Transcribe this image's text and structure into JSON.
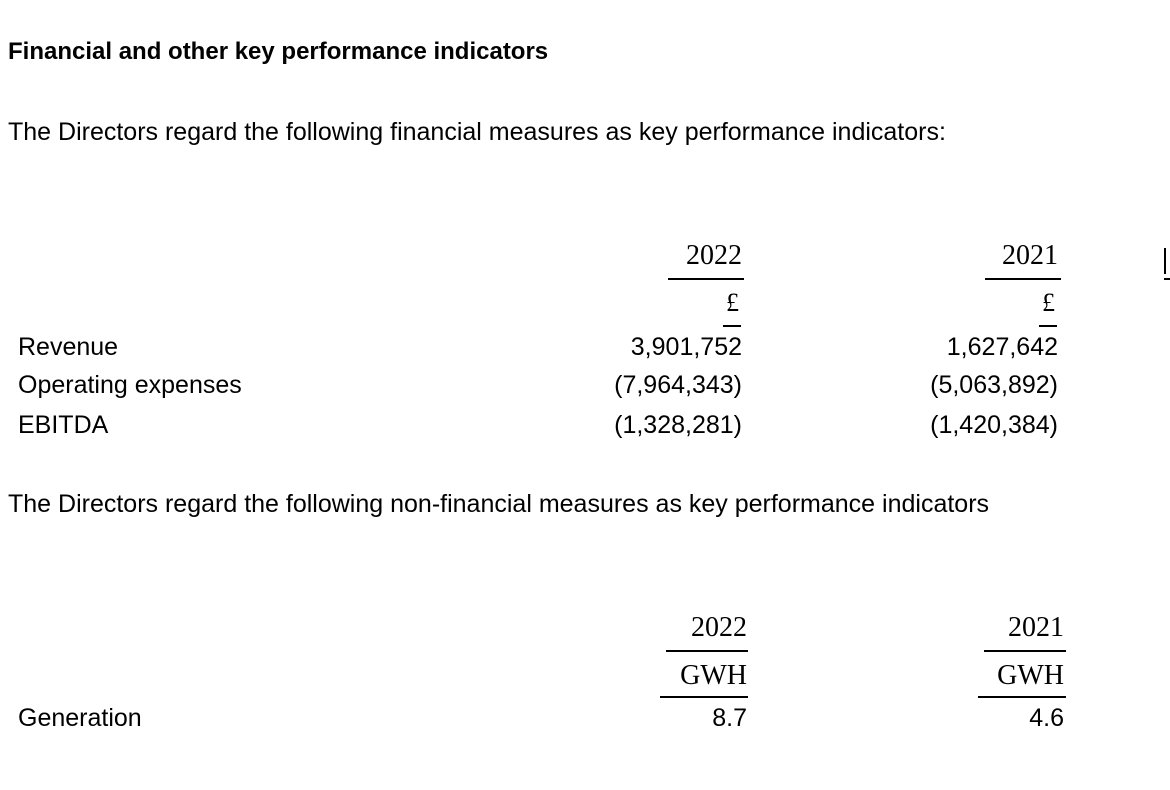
{
  "heading": "Financial and other key performance indicators",
  "financial": {
    "intro": "The Directors regard the following financial measures as key performance indicators:",
    "columns": [
      {
        "year": "2022",
        "unit": "£"
      },
      {
        "year": "2021",
        "unit": "£"
      }
    ],
    "rows": [
      {
        "label": "Revenue",
        "values": [
          "3,901,752",
          "1,627,642"
        ]
      },
      {
        "label": "Operating expenses",
        "values": [
          "(7,964,343)",
          "(5,063,892)"
        ]
      },
      {
        "label": "EBITDA",
        "values": [
          "(1,328,281)",
          "(1,420,384)"
        ]
      }
    ]
  },
  "non_financial": {
    "intro": "The Directors regard the following non-financial measures as key performance indicators",
    "columns": [
      {
        "year": "2022",
        "unit": "GWH"
      },
      {
        "year": "2021",
        "unit": "GWH"
      }
    ],
    "rows": [
      {
        "label": "Generation",
        "values": [
          "8.7",
          "4.6"
        ]
      }
    ]
  }
}
